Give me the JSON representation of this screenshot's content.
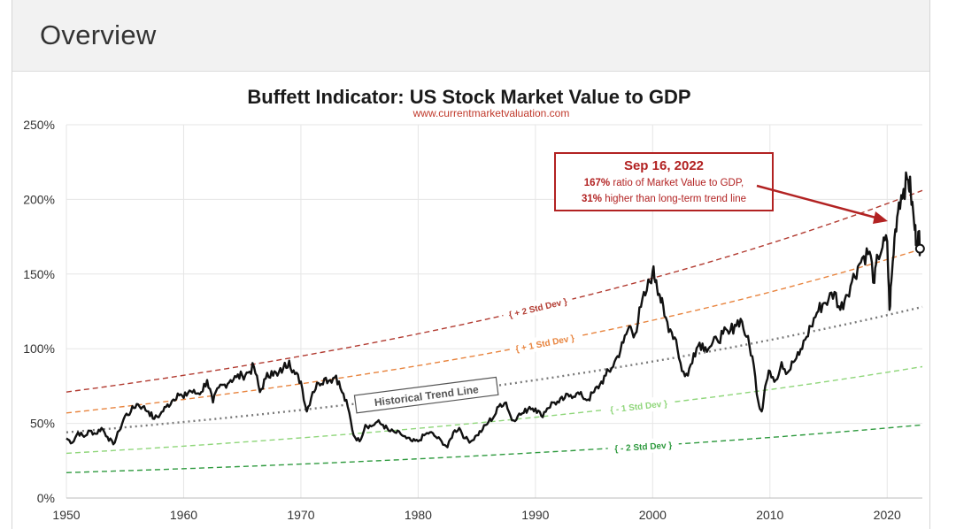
{
  "header": {
    "title": "Overview"
  },
  "colors": {
    "price": "#111111",
    "trend": "#7a7a7a",
    "plus2": "#b23b31",
    "plus1": "#e8843e",
    "minus1": "#8fd67a",
    "minus2": "#2e9a3e",
    "callout": "#b22222",
    "grid": "#e6e6e6"
  },
  "chart_data": {
    "type": "line",
    "title": "Buffett Indicator: US Stock Market Value to GDP",
    "subtitle": "www.currentmarketvaluation.com",
    "xlim": [
      1950,
      2023
    ],
    "ylim": [
      0,
      250
    ],
    "x_ticks": [
      "1950",
      "1960",
      "1970",
      "1980",
      "1990",
      "2000",
      "2010",
      "2020"
    ],
    "y_ticks": [
      "0%",
      "50%",
      "100%",
      "150%",
      "200%",
      "250%"
    ],
    "grid": "vertical and horizontal",
    "series": [
      {
        "values": [
          [
            1950.0,
            40
          ],
          [
            1950.5,
            37
          ],
          [
            1951.0,
            44
          ],
          [
            1951.5,
            41
          ],
          [
            1952.0,
            45
          ],
          [
            1952.5,
            43
          ],
          [
            1953.0,
            47
          ],
          [
            1953.5,
            41
          ],
          [
            1954.0,
            36
          ],
          [
            1954.5,
            45
          ],
          [
            1955.0,
            55
          ],
          [
            1955.5,
            58
          ],
          [
            1956.0,
            63
          ],
          [
            1956.5,
            61
          ],
          [
            1957.0,
            58
          ],
          [
            1957.5,
            53
          ],
          [
            1958.0,
            56
          ],
          [
            1958.5,
            61
          ],
          [
            1959.0,
            65
          ],
          [
            1959.5,
            70
          ],
          [
            1960.0,
            67
          ],
          [
            1960.5,
            72
          ],
          [
            1961.0,
            70
          ],
          [
            1961.5,
            71
          ],
          [
            1962.0,
            79
          ],
          [
            1962.5,
            64
          ],
          [
            1963.0,
            74
          ],
          [
            1963.5,
            76
          ],
          [
            1964.0,
            79
          ],
          [
            1964.5,
            81
          ],
          [
            1965.0,
            82
          ],
          [
            1965.5,
            84
          ],
          [
            1966.0,
            88
          ],
          [
            1966.5,
            71
          ],
          [
            1967.0,
            80
          ],
          [
            1967.5,
            85
          ],
          [
            1968.0,
            82
          ],
          [
            1968.5,
            87
          ],
          [
            1969.0,
            92
          ],
          [
            1969.5,
            83
          ],
          [
            1970.0,
            78
          ],
          [
            1970.5,
            58
          ],
          [
            1971.0,
            71
          ],
          [
            1971.5,
            77
          ],
          [
            1972.0,
            80
          ],
          [
            1972.5,
            79
          ],
          [
            1973.0,
            82
          ],
          [
            1973.5,
            71
          ],
          [
            1974.0,
            61
          ],
          [
            1974.5,
            42
          ],
          [
            1975.0,
            38
          ],
          [
            1975.5,
            49
          ],
          [
            1976.0,
            48
          ],
          [
            1976.5,
            51
          ],
          [
            1977.0,
            49
          ],
          [
            1977.5,
            45
          ],
          [
            1978.0,
            44
          ],
          [
            1978.5,
            43
          ],
          [
            1979.0,
            40
          ],
          [
            1979.5,
            38
          ],
          [
            1980.0,
            38
          ],
          [
            1980.5,
            42
          ],
          [
            1981.0,
            44
          ],
          [
            1981.5,
            41
          ],
          [
            1982.0,
            38
          ],
          [
            1982.5,
            34
          ],
          [
            1983.0,
            44
          ],
          [
            1983.5,
            47
          ],
          [
            1984.0,
            40
          ],
          [
            1984.5,
            38
          ],
          [
            1985.0,
            42
          ],
          [
            1985.5,
            46
          ],
          [
            1986.0,
            51
          ],
          [
            1986.5,
            55
          ],
          [
            1987.0,
            63
          ],
          [
            1987.5,
            64
          ],
          [
            1988.0,
            52
          ],
          [
            1988.5,
            55
          ],
          [
            1989.0,
            57
          ],
          [
            1989.5,
            61
          ],
          [
            1990.0,
            60
          ],
          [
            1990.5,
            55
          ],
          [
            1991.0,
            60
          ],
          [
            1991.5,
            64
          ],
          [
            1992.0,
            64
          ],
          [
            1992.5,
            67
          ],
          [
            1993.0,
            69
          ],
          [
            1993.5,
            70
          ],
          [
            1994.0,
            68
          ],
          [
            1994.5,
            66
          ],
          [
            1995.0,
            71
          ],
          [
            1995.5,
            76
          ],
          [
            1996.0,
            82
          ],
          [
            1996.5,
            87
          ],
          [
            1997.0,
            95
          ],
          [
            1997.5,
            104
          ],
          [
            1998.0,
            115
          ],
          [
            1998.5,
            110
          ],
          [
            1999.0,
            128
          ],
          [
            1999.5,
            139
          ],
          [
            2000.0,
            152
          ],
          [
            2000.3,
            146
          ],
          [
            2000.6,
            136
          ],
          [
            2001.0,
            122
          ],
          [
            2001.5,
            113
          ],
          [
            2002.0,
            106
          ],
          [
            2002.5,
            85
          ],
          [
            2003.0,
            82
          ],
          [
            2003.5,
            97
          ],
          [
            2004.0,
            104
          ],
          [
            2004.5,
            101
          ],
          [
            2005.0,
            102
          ],
          [
            2005.5,
            106
          ],
          [
            2006.0,
            110
          ],
          [
            2006.5,
            110
          ],
          [
            2007.0,
            116
          ],
          [
            2007.5,
            120
          ],
          [
            2008.0,
            108
          ],
          [
            2008.5,
            95
          ],
          [
            2009.0,
            65
          ],
          [
            2009.3,
            58
          ],
          [
            2009.6,
            75
          ],
          [
            2010.0,
            85
          ],
          [
            2010.5,
            79
          ],
          [
            2011.0,
            91
          ],
          [
            2011.5,
            84
          ],
          [
            2012.0,
            91
          ],
          [
            2012.5,
            96
          ],
          [
            2013.0,
            106
          ],
          [
            2013.5,
            115
          ],
          [
            2014.0,
            124
          ],
          [
            2014.5,
            130
          ],
          [
            2015.0,
            133
          ],
          [
            2015.5,
            138
          ],
          [
            2016.0,
            126
          ],
          [
            2016.5,
            136
          ],
          [
            2017.0,
            145
          ],
          [
            2017.5,
            155
          ],
          [
            2018.0,
            162
          ],
          [
            2018.5,
            165
          ],
          [
            2018.9,
            144
          ],
          [
            2019.2,
            162
          ],
          [
            2019.6,
            168
          ],
          [
            2020.0,
            172
          ],
          [
            2020.2,
            126
          ],
          [
            2020.4,
            150
          ],
          [
            2020.7,
            180
          ],
          [
            2021.0,
            198
          ],
          [
            2021.4,
            207
          ],
          [
            2021.8,
            213
          ],
          [
            2022.0,
            206
          ],
          [
            2022.3,
            184
          ],
          [
            2022.5,
            172
          ],
          [
            2022.7,
            176
          ],
          [
            2022.8,
            167
          ]
        ]
      }
    ],
    "trend_lines": [
      {
        "name": "Historical Trend Line",
        "start": 44,
        "end": 128,
        "style": "dotted"
      },
      {
        "name": "+ 2 Std Dev",
        "start": 71,
        "end": 206,
        "style": "dashed"
      },
      {
        "name": "+ 1 Std Dev",
        "start": 57,
        "end": 167,
        "style": "dashed"
      },
      {
        "name": "- 1 Std Dev",
        "start": 30,
        "end": 88,
        "style": "dashed"
      },
      {
        "name": "- 2 Std Dev",
        "start": 17,
        "end": 49,
        "style": "dashed"
      }
    ],
    "labels": {
      "trend": "Historical Trend Line",
      "plus2": "+ 2 Std Dev",
      "plus1": "+ 1 Std Dev",
      "minus1": "- 1 Std Dev",
      "minus2": "- 2 Std Dev"
    },
    "annotation": {
      "date": "Sep 16, 2022",
      "line1_bold": "167%",
      "line1_rest": " ratio of Market Value to GDP,",
      "line2_bold": "31%",
      "line2_rest": " higher than long-term trend line",
      "point": [
        2022.8,
        167
      ]
    }
  }
}
